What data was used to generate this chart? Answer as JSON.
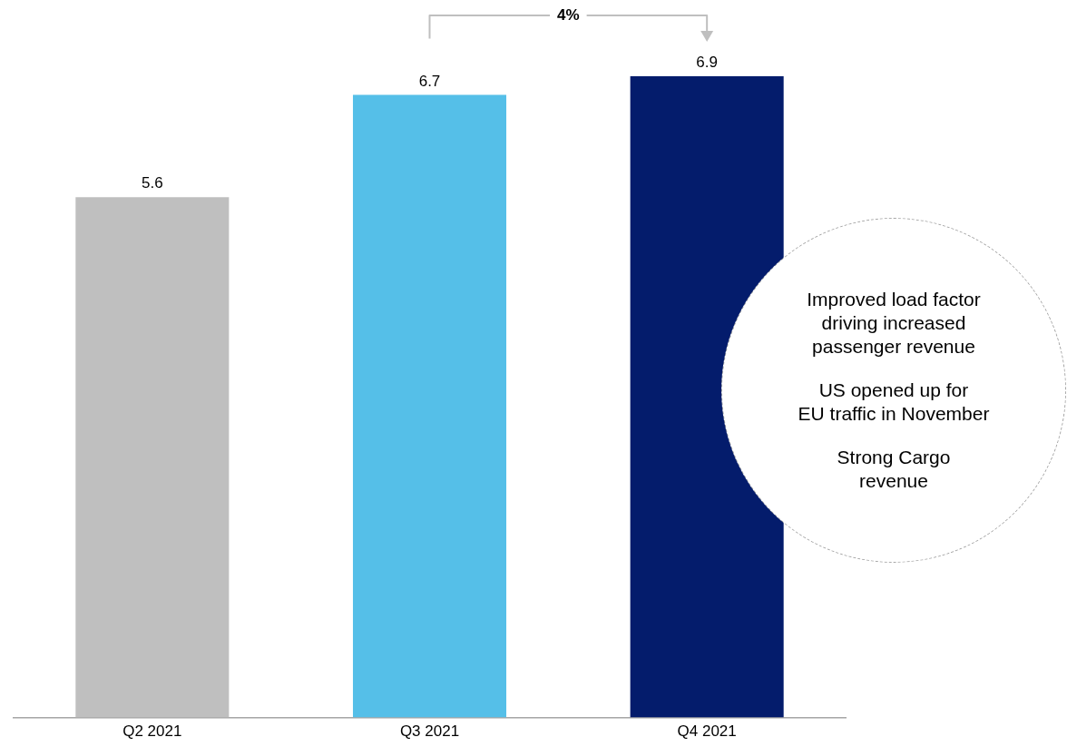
{
  "chart_data": {
    "type": "bar",
    "categories": [
      "Q2 2021",
      "Q3 2021",
      "Q4 2021"
    ],
    "values": [
      5.6,
      6.7,
      6.9
    ],
    "colors": [
      "#bfbfbf",
      "#55bfe8",
      "#041c6c"
    ],
    "tick_labels": "x",
    "grid": false,
    "legend": false,
    "data_labels": true,
    "annotations": [
      "4%",
      "Improved load factor\ndriving increased\npassenger revenue",
      "US opened up for\nEU traffic in November",
      "Strong Cargo\nrevenue"
    ]
  }
}
